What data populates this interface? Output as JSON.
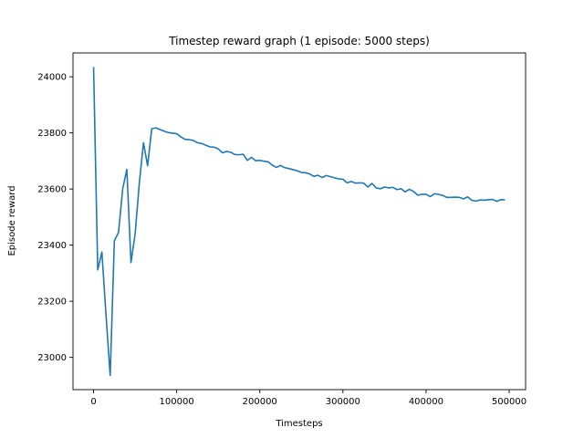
{
  "chart_data": {
    "type": "line",
    "title": "Timestep reward graph (1 episode: 5000 steps)",
    "xlabel": "Timesteps",
    "ylabel": "Episode reward",
    "xlim": [
      -24750,
      519750
    ],
    "ylim": [
      22885,
      24085
    ],
    "xticks": [
      0,
      100000,
      200000,
      300000,
      400000,
      500000
    ],
    "yticks": [
      23000,
      23200,
      23400,
      23600,
      23800,
      24000
    ],
    "grid": false,
    "series_color": "#1f77b4",
    "series": [
      {
        "x": [
          0,
          5000,
          10000,
          15000,
          20000,
          25000,
          30000,
          35000,
          40000,
          45000,
          50000,
          55000,
          60000,
          65000,
          70000,
          75000,
          80000,
          85000,
          90000,
          95000,
          100000,
          105000,
          110000,
          115000,
          120000,
          125000,
          130000,
          135000,
          140000,
          145000,
          150000,
          155000,
          160000,
          165000,
          170000,
          175000,
          180000,
          185000,
          190000,
          195000,
          200000,
          205000,
          210000,
          215000,
          220000,
          225000,
          230000,
          235000,
          240000,
          245000,
          250000,
          255000,
          260000,
          265000,
          270000,
          275000,
          280000,
          285000,
          290000,
          295000,
          300000,
          305000,
          310000,
          315000,
          320000,
          325000,
          330000,
          335000,
          340000,
          345000,
          350000,
          355000,
          360000,
          365000,
          370000,
          375000,
          380000,
          385000,
          390000,
          395000,
          400000,
          405000,
          410000,
          415000,
          420000,
          425000,
          430000,
          435000,
          440000,
          445000,
          450000,
          455000,
          460000,
          465000,
          470000,
          475000,
          480000,
          485000,
          490000,
          495000
        ],
        "values": [
          24035,
          23312,
          23375,
          23150,
          22935,
          23415,
          23445,
          23600,
          23670,
          23338,
          23440,
          23620,
          23765,
          23683,
          23815,
          23818,
          23812,
          23806,
          23801,
          23799,
          23797,
          23786,
          23777,
          23776,
          23773,
          23765,
          23762,
          23756,
          23750,
          23749,
          23743,
          23729,
          23734,
          23731,
          23723,
          23722,
          23724,
          23702,
          23713,
          23701,
          23702,
          23699,
          23697,
          23685,
          23677,
          23684,
          23676,
          23673,
          23669,
          23665,
          23659,
          23658,
          23654,
          23645,
          23649,
          23641,
          23648,
          23644,
          23640,
          23636,
          23635,
          23622,
          23627,
          23621,
          23622,
          23621,
          23607,
          23620,
          23604,
          23601,
          23607,
          23604,
          23606,
          23598,
          23601,
          23590,
          23599,
          23591,
          23578,
          23581,
          23581,
          23573,
          23583,
          23581,
          23577,
          23570,
          23570,
          23571,
          23570,
          23565,
          23572,
          23560,
          23557,
          23561,
          23560,
          23562,
          23563,
          23556,
          23562,
          23561
        ]
      }
    ]
  }
}
